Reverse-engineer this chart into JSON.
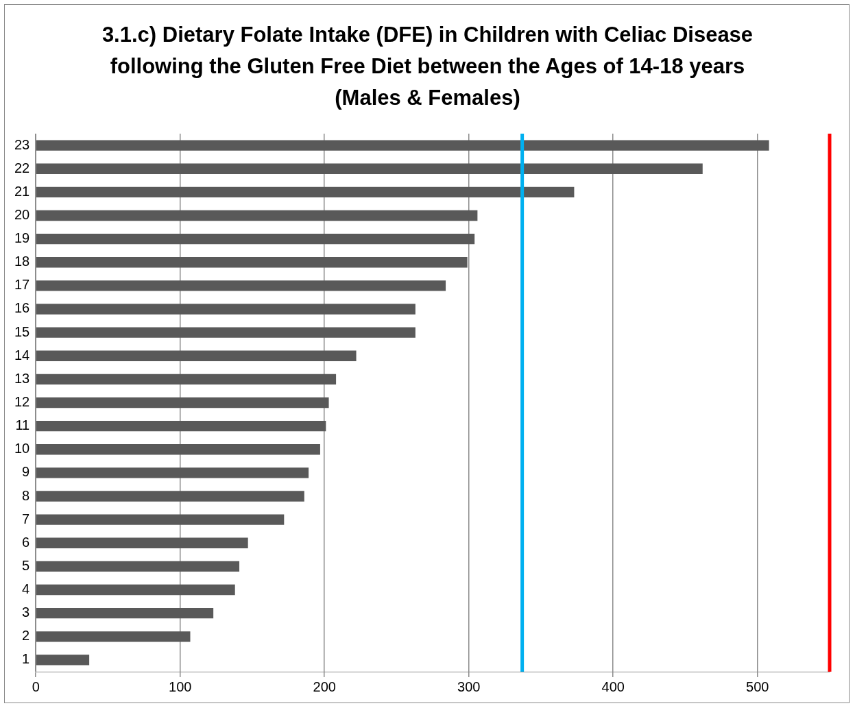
{
  "chart_data": {
    "type": "bar",
    "orientation": "horizontal",
    "title": "3.1.c) Dietary Folate Intake (DFE) in Children with Celiac Disease following the Gluten Free Diet between the Ages of 14-18 years (Males & Females)",
    "categories": [
      "23",
      "22",
      "21",
      "20",
      "19",
      "18",
      "17",
      "16",
      "15",
      "14",
      "13",
      "12",
      "11",
      "10",
      "9",
      "8",
      "7",
      "6",
      "5",
      "4",
      "3",
      "2",
      "1"
    ],
    "values": [
      508,
      462,
      373,
      306,
      304,
      299,
      284,
      263,
      263,
      222,
      208,
      203,
      201,
      197,
      189,
      186,
      172,
      147,
      141,
      138,
      123,
      107,
      37
    ],
    "color": "#595959",
    "xlim": [
      0,
      550
    ],
    "xticks": [
      0,
      100,
      200,
      300,
      400,
      500
    ],
    "grid": "x",
    "legend": false,
    "ref_lines": [
      {
        "axis": "x",
        "value": 337,
        "color": "#00b0f0"
      },
      {
        "axis": "x",
        "value": 550,
        "color": "#ff0000"
      }
    ]
  }
}
